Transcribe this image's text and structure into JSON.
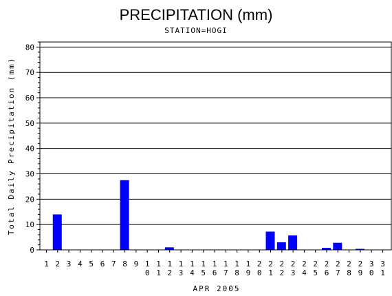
{
  "chart_data": {
    "type": "bar",
    "title": "PRECIPITATION (mm)",
    "subtitle": "STATION=HOGI",
    "ylabel": "Total Daily Precipitation (mm)",
    "xlabel": "APR 2005",
    "ylim": [
      0,
      82
    ],
    "yticks": [
      0,
      10,
      20,
      30,
      40,
      50,
      60,
      70,
      80
    ],
    "grid": true,
    "bar_color": "#0000ff",
    "categories": [
      "1",
      "2",
      "3",
      "4",
      "5",
      "6",
      "7",
      "8",
      "9",
      "10",
      "11",
      "12",
      "13",
      "14",
      "15",
      "16",
      "17",
      "18",
      "19",
      "20",
      "21",
      "22",
      "23",
      "24",
      "25",
      "26",
      "27",
      "28",
      "29",
      "30",
      "31"
    ],
    "values": [
      0,
      14,
      0,
      0,
      0,
      0,
      0,
      27.5,
      0,
      0,
      0,
      1,
      0,
      0,
      0,
      0,
      0,
      0,
      0,
      0,
      7.2,
      3,
      5.7,
      0,
      0,
      0.8,
      2.8,
      0,
      0.4,
      0,
      0
    ]
  }
}
